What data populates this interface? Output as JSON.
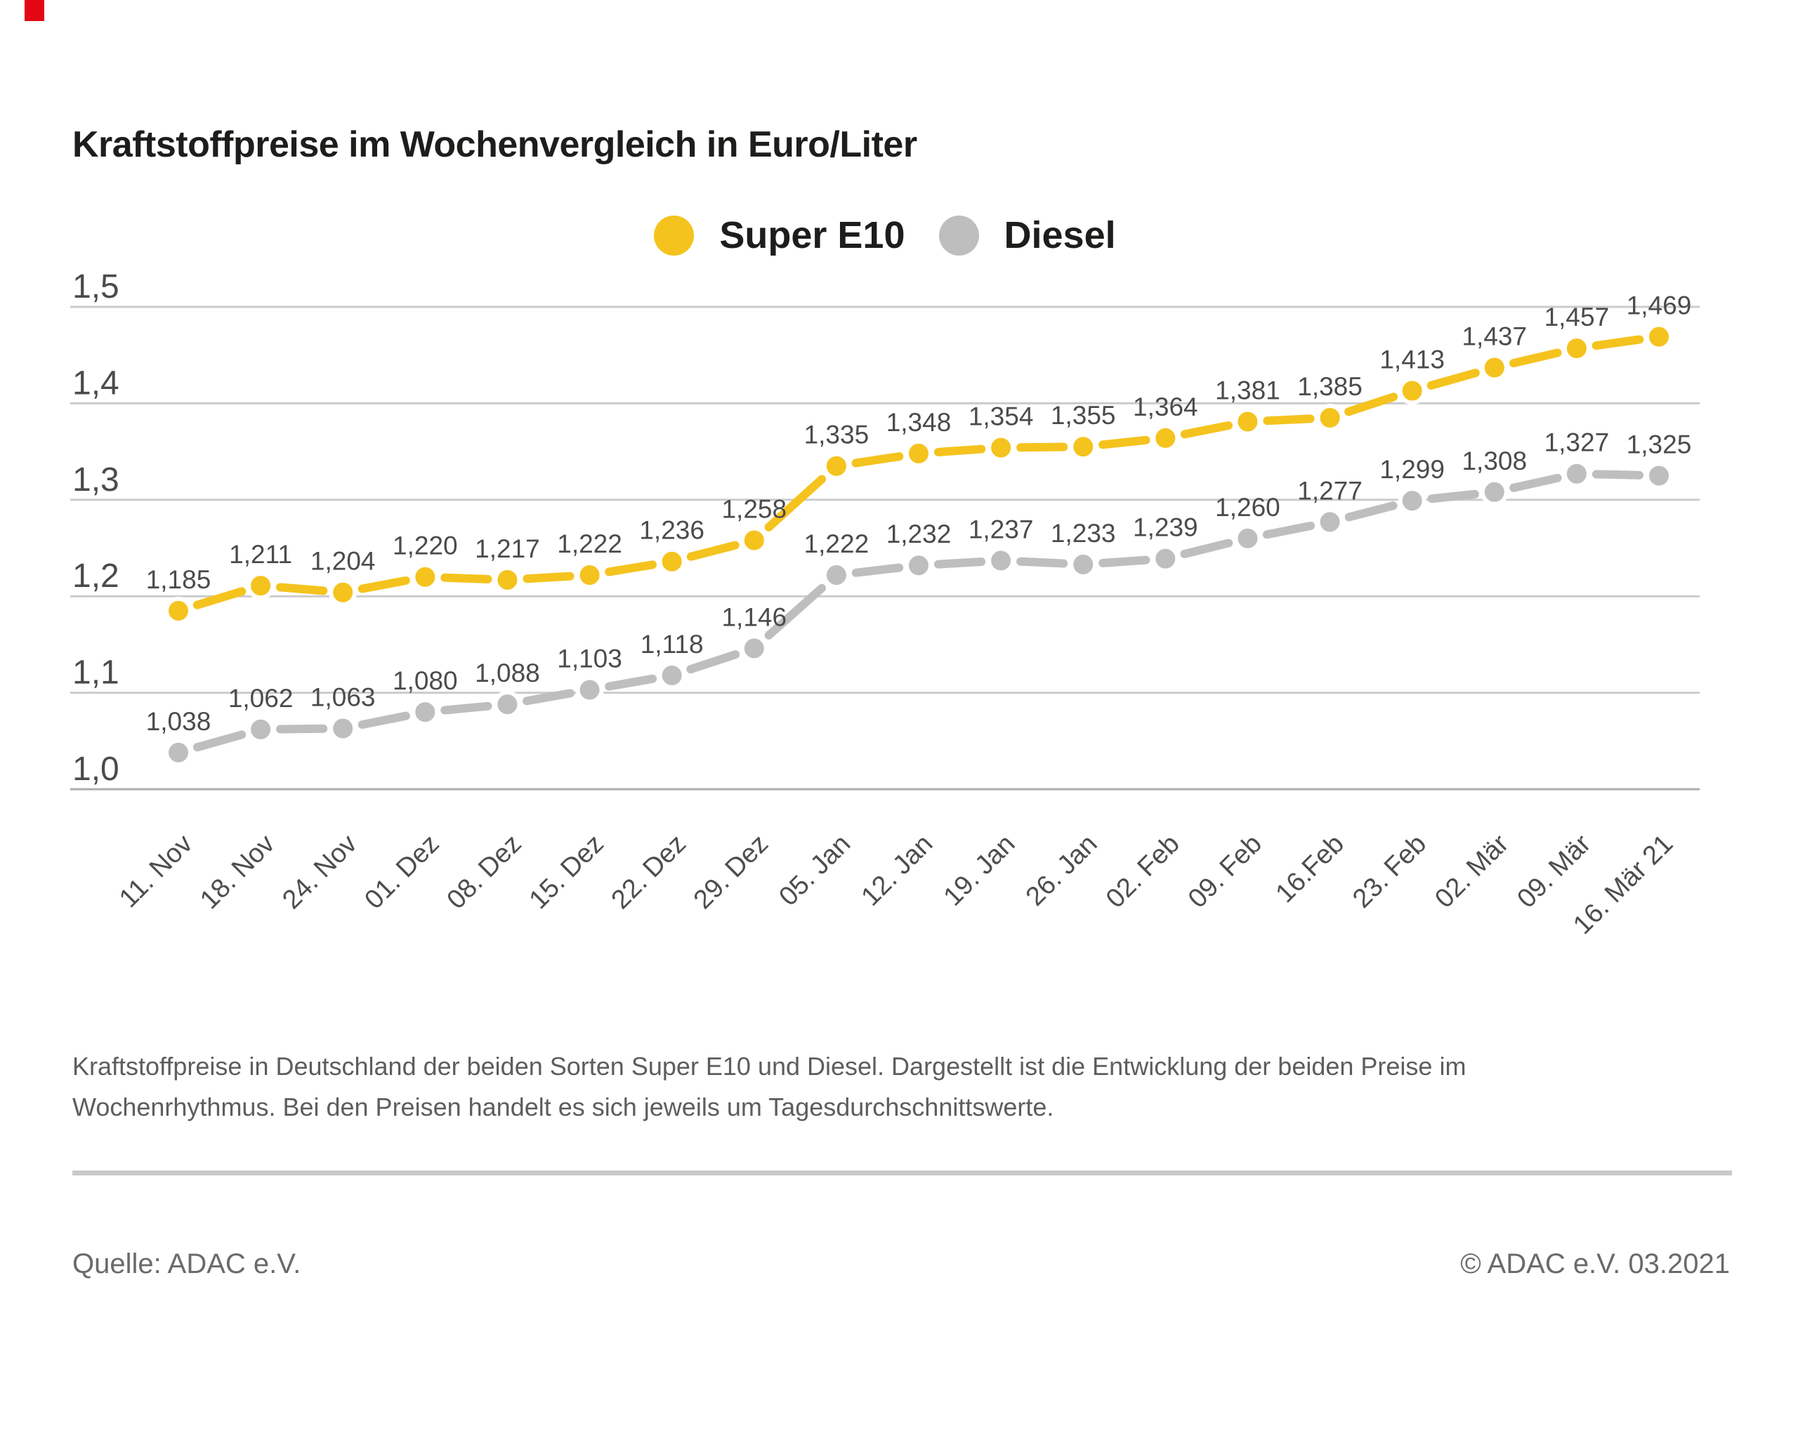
{
  "page": {
    "background": "#ffffff"
  },
  "logo": {
    "color": "#e30613"
  },
  "header": {
    "title": "Kraftstoffpreise im Wochenvergleich in Euro/Liter"
  },
  "legend": [
    {
      "label": "Super E10",
      "color": "#F5C31D"
    },
    {
      "label": "Diesel",
      "color": "#BEBEBE"
    }
  ],
  "chart_data": {
    "type": "line",
    "categories": [
      "11. Nov",
      "18. Nov",
      "24. Nov",
      "01. Dez",
      "08. Dez",
      "15. Dez",
      "22. Dez",
      "29. Dez",
      "05. Jan",
      "12. Jan",
      "19. Jan",
      "26. Jan",
      "02. Feb",
      "09. Feb",
      "16.Feb",
      "23. Feb",
      "02. Mär",
      "09. Mär",
      "16. Mär 21"
    ],
    "series": [
      {
        "name": "Super E10",
        "color": "#F5C31D",
        "values": [
          1.185,
          1.211,
          1.204,
          1.22,
          1.217,
          1.222,
          1.236,
          1.258,
          1.335,
          1.348,
          1.354,
          1.355,
          1.364,
          1.381,
          1.385,
          1.413,
          1.437,
          1.457,
          1.469
        ]
      },
      {
        "name": "Diesel",
        "color": "#BEBEBE",
        "values": [
          1.038,
          1.062,
          1.063,
          1.08,
          1.088,
          1.103,
          1.118,
          1.146,
          1.222,
          1.232,
          1.237,
          1.233,
          1.239,
          1.26,
          1.277,
          1.299,
          1.308,
          1.327,
          1.325
        ]
      }
    ],
    "ylim": [
      1.0,
      1.5
    ],
    "yticks": [
      {
        "label": "1,5",
        "value": 1.5
      },
      {
        "label": "1,4",
        "value": 1.4
      },
      {
        "label": "1,3",
        "value": 1.3
      },
      {
        "label": "1,2",
        "value": 1.2
      },
      {
        "label": "1,1",
        "value": 1.1
      },
      {
        "label": "1,0",
        "value": 1.0
      }
    ],
    "grid": true,
    "legend_position": "top-center",
    "point_labels_visible": true,
    "decimal_separator": ",",
    "colors": {
      "gridline": "#cbcbcb",
      "axis_line": "#adadad",
      "tick_text": "#4b4b4b",
      "point_label_text": "#4b4b4b",
      "x_label_text": "#4d4d4d"
    }
  },
  "caption": {
    "line1": "Kraftstoffpreise in Deutschland der beiden Sorten Super E10 und Diesel. Dargestellt ist die Entwicklung der beiden Preise im",
    "line2": "Wochenrhythmus. Bei den Preisen handelt es sich jeweils um Tagesdurchschnittswerte."
  },
  "footer": {
    "source": "Quelle: ADAC e.V.",
    "copyright": "© ADAC e.V. 03.2021"
  }
}
